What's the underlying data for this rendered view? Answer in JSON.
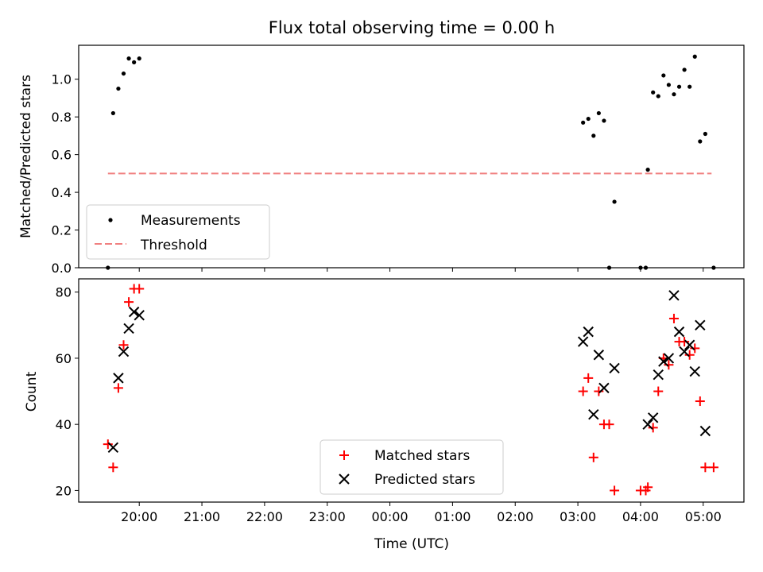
{
  "chart_data": [
    {
      "type": "scatter",
      "title": "Flux total observing time = 0.00 h",
      "ylabel": "Matched/Predicted stars",
      "xlabel": "",
      "ylim": [
        0,
        1.18
      ],
      "xlim": [
        "19:02",
        "05:39"
      ],
      "yticks": [
        "0.0",
        "0.2",
        "0.4",
        "0.6",
        "0.8",
        "1.0"
      ],
      "legend": {
        "placement": "lower-left",
        "entries": [
          "Measurements",
          "Threshold"
        ]
      },
      "series": [
        {
          "name": "Measurements",
          "color": "#000000",
          "marker": "dot",
          "points": [
            [
              "19:30",
              0.0
            ],
            [
              "19:35",
              0.82
            ],
            [
              "19:40",
              0.95
            ],
            [
              "19:45",
              1.03
            ],
            [
              "19:50",
              1.11
            ],
            [
              "19:55",
              1.09
            ],
            [
              "20:00",
              1.11
            ],
            [
              "03:05",
              0.77
            ],
            [
              "03:10",
              0.79
            ],
            [
              "03:15",
              0.7
            ],
            [
              "03:20",
              0.82
            ],
            [
              "03:25",
              0.78
            ],
            [
              "03:30",
              0.0
            ],
            [
              "03:35",
              0.35
            ],
            [
              "04:00",
              0.0
            ],
            [
              "04:05",
              0.0
            ],
            [
              "04:07",
              0.52
            ],
            [
              "04:12",
              0.93
            ],
            [
              "04:17",
              0.91
            ],
            [
              "04:22",
              1.02
            ],
            [
              "04:27",
              0.97
            ],
            [
              "04:32",
              0.92
            ],
            [
              "04:37",
              0.96
            ],
            [
              "04:42",
              1.05
            ],
            [
              "04:47",
              0.96
            ],
            [
              "04:52",
              1.12
            ],
            [
              "04:57",
              0.67
            ],
            [
              "05:02",
              0.71
            ],
            [
              "05:10",
              0.0
            ]
          ]
        },
        {
          "name": "Threshold",
          "color": "#f08080",
          "style": "dashed",
          "points": [
            [
              "19:30",
              0.5
            ],
            [
              "05:08",
              0.5
            ]
          ]
        }
      ]
    },
    {
      "type": "scatter",
      "title": "",
      "ylabel": "Count",
      "xlabel": "Time (UTC)",
      "ylim": [
        16.5,
        84
      ],
      "xlim": [
        "19:02",
        "05:39"
      ],
      "yticks": [
        "20",
        "40",
        "60",
        "80"
      ],
      "xticks": [
        "20:00",
        "21:00",
        "22:00",
        "23:00",
        "00:00",
        "01:00",
        "02:00",
        "03:00",
        "04:00",
        "05:00"
      ],
      "legend": {
        "placement": "lower-center",
        "entries": [
          "Matched stars",
          "Predicted stars"
        ]
      },
      "series": [
        {
          "name": "Matched stars",
          "color": "#ff0000",
          "marker": "plus",
          "points": [
            [
              "19:30",
              34
            ],
            [
              "19:35",
              27
            ],
            [
              "19:40",
              51
            ],
            [
              "19:45",
              64
            ],
            [
              "19:50",
              77
            ],
            [
              "19:55",
              81
            ],
            [
              "20:00",
              81
            ],
            [
              "03:05",
              50
            ],
            [
              "03:10",
              54
            ],
            [
              "03:15",
              30
            ],
            [
              "03:20",
              50
            ],
            [
              "03:25",
              40
            ],
            [
              "03:30",
              40
            ],
            [
              "03:35",
              20
            ],
            [
              "04:00",
              20
            ],
            [
              "04:05",
              20
            ],
            [
              "04:07",
              21
            ],
            [
              "04:12",
              39
            ],
            [
              "04:17",
              50
            ],
            [
              "04:22",
              60
            ],
            [
              "04:27",
              58
            ],
            [
              "04:32",
              72
            ],
            [
              "04:37",
              65
            ],
            [
              "04:42",
              65
            ],
            [
              "04:47",
              61
            ],
            [
              "04:52",
              63
            ],
            [
              "04:57",
              47
            ],
            [
              "05:02",
              27
            ],
            [
              "05:10",
              27
            ]
          ]
        },
        {
          "name": "Predicted stars",
          "color": "#000000",
          "marker": "x",
          "points": [
            [
              "19:35",
              33
            ],
            [
              "19:40",
              54
            ],
            [
              "19:45",
              62
            ],
            [
              "19:50",
              69
            ],
            [
              "19:55",
              74
            ],
            [
              "20:00",
              73
            ],
            [
              "03:05",
              65
            ],
            [
              "03:10",
              68
            ],
            [
              "03:15",
              43
            ],
            [
              "03:20",
              61
            ],
            [
              "03:25",
              51
            ],
            [
              "03:35",
              57
            ],
            [
              "04:07",
              40
            ],
            [
              "04:12",
              42
            ],
            [
              "04:17",
              55
            ],
            [
              "04:22",
              59
            ],
            [
              "04:27",
              60
            ],
            [
              "04:32",
              79
            ],
            [
              "04:37",
              68
            ],
            [
              "04:42",
              62
            ],
            [
              "04:47",
              64
            ],
            [
              "04:52",
              56
            ],
            [
              "04:57",
              70
            ],
            [
              "05:02",
              38
            ]
          ]
        }
      ]
    }
  ]
}
